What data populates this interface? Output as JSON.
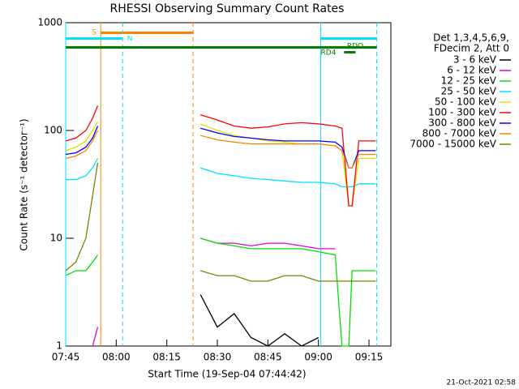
{
  "chart_data": {
    "type": "line",
    "title": "RHESSI Observing Summary Count Rates",
    "x_label": "Start Time (19-Sep-04 07:44:42)",
    "y_label": "Count Rate (s⁻¹ detector⁻¹)",
    "legend_header": [
      "Det 1,3,4,5,6,9,",
      "FDecim 2, Att 0"
    ],
    "timestamp": "21-Oct-2021 02:58",
    "log_y": true,
    "xlim": [
      0,
      96.5
    ],
    "ylim": [
      1,
      1000
    ],
    "xticks": [
      {
        "value": 0,
        "label": "07:45"
      },
      {
        "value": 15,
        "label": "08:00"
      },
      {
        "value": 30,
        "label": "08:15"
      },
      {
        "value": 45,
        "label": "08:30"
      },
      {
        "value": 60,
        "label": "08:45"
      },
      {
        "value": 75,
        "label": "09:00"
      },
      {
        "value": 90,
        "label": "09:15"
      }
    ],
    "yticks": [
      1,
      10,
      100,
      1000
    ],
    "flags": [
      {
        "label": "S",
        "color": "#ff8000",
        "segments": [
          [
            10.4,
            37.8
          ]
        ]
      },
      {
        "label": "N",
        "color": "#00e0ff",
        "segments": [
          [
            0,
            16.9
          ],
          [
            75.7,
            92.3
          ]
        ]
      },
      {
        "label": "RDO",
        "color": "#008000",
        "segments": [
          [
            0,
            92.3
          ]
        ]
      },
      {
        "label": "RD4",
        "color": "#008000",
        "segments": [
          [
            82.6,
            86
          ]
        ]
      }
    ],
    "x": [
      0,
      3,
      6,
      8,
      9.5,
      null,
      40,
      45,
      50,
      55,
      60,
      65,
      70,
      75,
      80,
      82,
      84,
      85,
      87,
      89,
      92
    ],
    "series": [
      {
        "name": "3 - 6 keV",
        "color": "#000000",
        "values": [
          null,
          null,
          null,
          null,
          null,
          null,
          3,
          1.5,
          2,
          1.2,
          1,
          1.3,
          1,
          1.2,
          null,
          null,
          null,
          null,
          null,
          null,
          null
        ]
      },
      {
        "name": "6 - 12 keV",
        "color": "#e000e0",
        "values": [
          null,
          null,
          null,
          1,
          1.5,
          null,
          10,
          9,
          9,
          8.5,
          9,
          9,
          8.5,
          8,
          8,
          null,
          null,
          null,
          null,
          null,
          null
        ]
      },
      {
        "name": "12 - 25 keV",
        "color": "#00e000",
        "values": [
          4.5,
          5,
          5,
          6,
          7,
          null,
          10,
          9,
          8.5,
          8,
          8,
          8,
          8,
          7.5,
          7,
          1,
          1,
          5,
          5,
          5,
          5
        ]
      },
      {
        "name": "25 - 50 keV",
        "color": "#00e0ff",
        "values": [
          35,
          35,
          38,
          45,
          55,
          null,
          45,
          40,
          38,
          36,
          35,
          34,
          33,
          33,
          32,
          30,
          30,
          30,
          32,
          32,
          32
        ]
      },
      {
        "name": "50 - 100 keV",
        "color": "#e0e000",
        "values": [
          65,
          70,
          80,
          100,
          120,
          null,
          115,
          100,
          90,
          85,
          80,
          78,
          75,
          75,
          72,
          65,
          20,
          20,
          55,
          55,
          55
        ]
      },
      {
        "name": "100 - 300 keV",
        "color": "#ff0000",
        "values": [
          80,
          85,
          100,
          130,
          170,
          null,
          140,
          125,
          110,
          105,
          108,
          115,
          118,
          115,
          110,
          105,
          20,
          20,
          80,
          80,
          80
        ]
      },
      {
        "name": "300 - 800 keV",
        "color": "#0000ff",
        "values": [
          60,
          62,
          70,
          85,
          110,
          null,
          105,
          95,
          88,
          85,
          82,
          80,
          80,
          80,
          78,
          70,
          45,
          45,
          65,
          65,
          65
        ]
      },
      {
        "name": "800 - 7000 keV",
        "color": "#ff8000",
        "values": [
          55,
          58,
          65,
          80,
          100,
          null,
          90,
          82,
          78,
          75,
          75,
          75,
          75,
          75,
          72,
          65,
          45,
          45,
          60,
          60,
          60
        ]
      },
      {
        "name": "7000 - 15000 keV",
        "color": "#808000",
        "values": [
          5,
          6,
          10,
          25,
          50,
          null,
          5,
          4.5,
          4.5,
          4,
          4,
          4.5,
          4.5,
          4,
          4,
          4,
          4,
          4,
          4,
          4,
          4
        ]
      }
    ]
  }
}
